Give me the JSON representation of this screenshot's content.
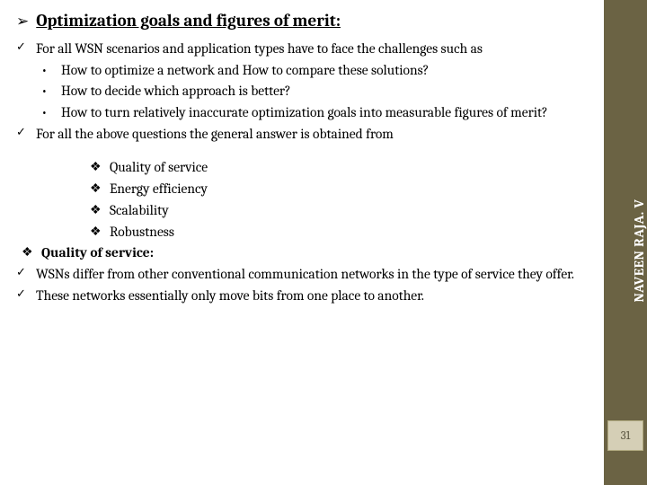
{
  "heading": {
    "bullet": "➢",
    "text": "Optimization goals and figures of merit:"
  },
  "items": [
    {
      "marker": "✓",
      "text": "For all WSN scenarios and application types have to face the challenges such as",
      "subs": [
        {
          "marker": "•",
          "text": "How to optimize a network and How to compare these solutions?"
        },
        {
          "marker": "•",
          "text": "How to decide which approach is better?"
        },
        {
          "marker": "•",
          "text": "How to turn relatively inaccurate optimization goals into measurable figures of merit?"
        }
      ]
    },
    {
      "marker": "✓",
      "text": "For all the above questions the general answer is obtained from"
    }
  ],
  "diamonds_indent": [
    {
      "marker": "❖",
      "text": "Quality of service"
    },
    {
      "marker": "❖",
      "text": "Energy efficiency"
    },
    {
      "marker": "❖",
      "text": "Scalability"
    },
    {
      "marker": "❖",
      "text": "Robustness"
    }
  ],
  "qos_heading": {
    "marker": "❖",
    "text": "Quality of service:"
  },
  "tail": [
    {
      "marker": "✓",
      "text": "WSNs differ from other conventional communication networks in the type of service they offer."
    },
    {
      "marker": "✓",
      "text": "These networks essentially only move bits from one place to another."
    }
  ],
  "sidebar": {
    "label": "NAVEEN RAJA. V",
    "page": "31",
    "bg": "#6b6344",
    "badge_bg": "#d5cfb6"
  }
}
